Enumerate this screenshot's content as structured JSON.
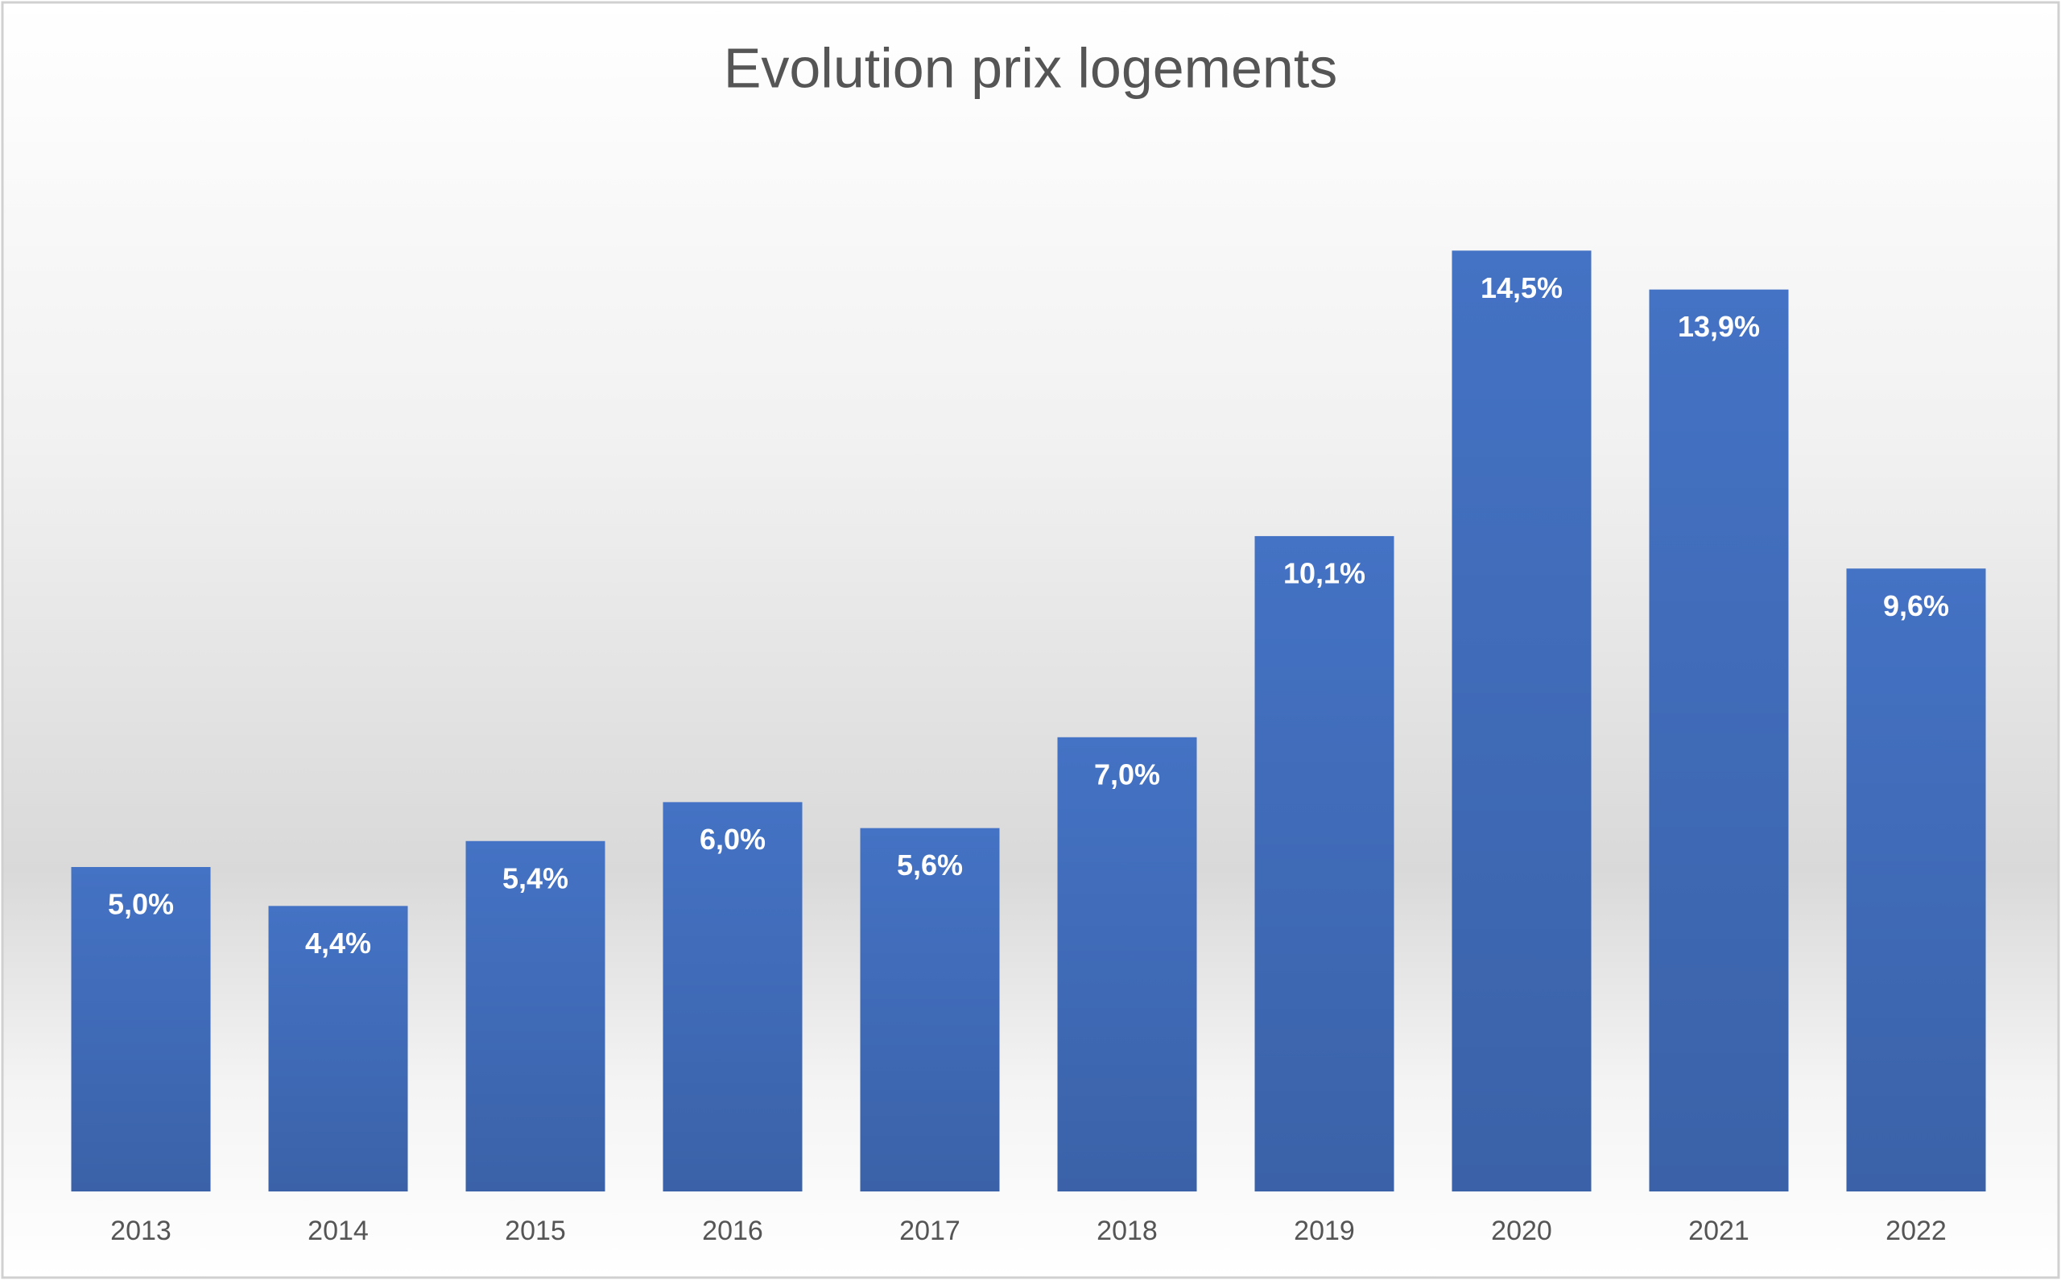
{
  "chart_data": {
    "type": "bar",
    "title": "Evolution prix logements",
    "categories": [
      "2013",
      "2014",
      "2015",
      "2016",
      "2017",
      "2018",
      "2019",
      "2020",
      "2021",
      "2022"
    ],
    "values": [
      5.0,
      4.4,
      5.4,
      6.0,
      5.6,
      7.0,
      10.1,
      14.5,
      13.9,
      9.6
    ],
    "value_labels": [
      "5,0%",
      "4,4%",
      "5,4%",
      "6,0%",
      "5,6%",
      "7,0%",
      "10,1%",
      "14,5%",
      "13,9%",
      "9,6%"
    ],
    "color": "#4472c4"
  }
}
